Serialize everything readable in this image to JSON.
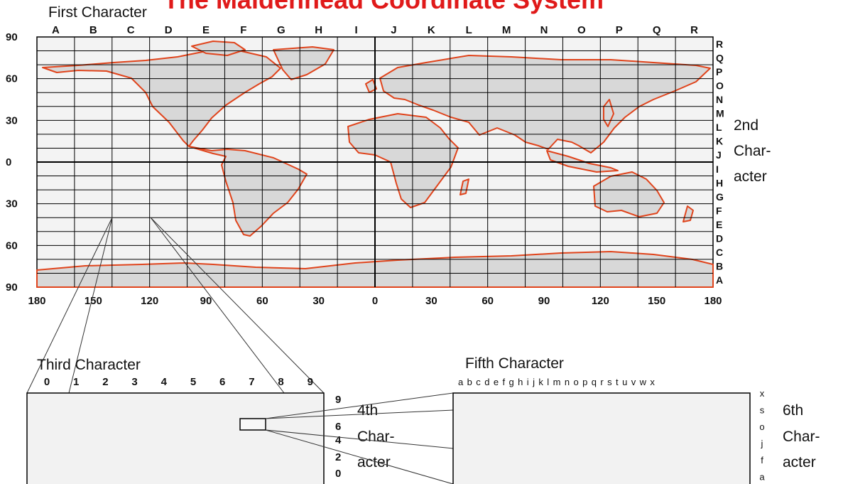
{
  "title": "The Maidenhead Coordinate System",
  "labels": {
    "first_character": "First Character",
    "third_character": "Third Character",
    "fifth_character": "Fifth Character",
    "second_char_lines": [
      "2nd",
      "Char-",
      "acter"
    ],
    "fourth_char_lines": [
      "4th",
      "Char-",
      "acter"
    ],
    "sixth_char_lines": [
      "6th",
      "Char-",
      "acter"
    ]
  },
  "field_columns": [
    "A",
    "B",
    "C",
    "D",
    "E",
    "F",
    "G",
    "H",
    "I",
    "J",
    "K",
    "L",
    "M",
    "N",
    "O",
    "P",
    "Q",
    "R"
  ],
  "field_rows_top_to_bottom": [
    "R",
    "Q",
    "P",
    "O",
    "N",
    "M",
    "L",
    "K",
    "J",
    "I",
    "H",
    "G",
    "F",
    "E",
    "D",
    "C",
    "B",
    "A"
  ],
  "latitude_labels": [
    "90",
    "60",
    "30",
    "0",
    "30",
    "60",
    "90"
  ],
  "longitude_labels": [
    "180",
    "150",
    "120",
    "90",
    "60",
    "30",
    "0",
    "30",
    "60",
    "90",
    "120",
    "150",
    "180"
  ],
  "square_columns": [
    "0",
    "1",
    "2",
    "3",
    "4",
    "5",
    "6",
    "7",
    "8",
    "9"
  ],
  "square_rows_visible": [
    "9",
    "6",
    "4",
    "2",
    "0"
  ],
  "subsquare_letters": "a b c d e f g h i j k l m n o p q r s t u v w x",
  "subsquare_rows_visible": [
    "x",
    "s",
    "o",
    "j",
    "f",
    "a"
  ],
  "colors": {
    "title": "#e01a1a",
    "coastline": "#e0441c",
    "land": "#d9d9d9",
    "grid": "#000000",
    "panel": "#f2f2f2"
  },
  "icons": [
    "world-map"
  ]
}
